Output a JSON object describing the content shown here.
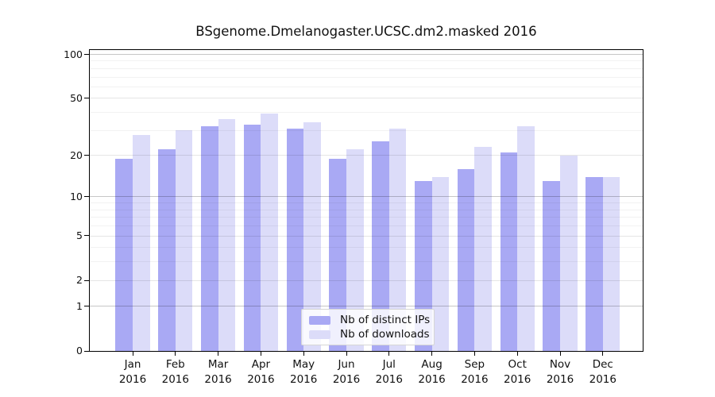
{
  "title": "BSgenome.Dmelanogaster.UCSC.dm2.masked 2016",
  "chart_data": {
    "type": "bar",
    "title": "BSgenome.Dmelanogaster.UCSC.dm2.masked 2016",
    "categories": [
      "Jan 2016",
      "Feb 2016",
      "Mar 2016",
      "Apr 2016",
      "May 2016",
      "Jun 2016",
      "Jul 2016",
      "Aug 2016",
      "Sep 2016",
      "Oct 2016",
      "Nov 2016",
      "Dec 2016"
    ],
    "series": [
      {
        "name": "Nb of distinct IPs",
        "color": "#a9a9f4",
        "values": [
          19,
          22,
          32,
          33,
          31,
          19,
          25,
          13,
          16,
          21,
          13,
          14
        ]
      },
      {
        "name": "Nb of downloads",
        "color": "#dcdcf9",
        "values": [
          28,
          30,
          36,
          39,
          34,
          22,
          31,
          14,
          23,
          32,
          20,
          14
        ]
      }
    ],
    "xlabel": "",
    "ylabel": "",
    "yscale": "log1p",
    "yticks": [
      0,
      1,
      2,
      5,
      10,
      20,
      50,
      100
    ],
    "ylim": [
      0,
      110
    ],
    "grid": true,
    "gridline_values": {
      "major": [
        1,
        10,
        100
      ],
      "secondary": [
        2,
        5,
        20,
        50
      ],
      "minor": [
        3,
        4,
        6,
        7,
        8,
        9,
        30,
        40,
        60,
        70,
        80,
        90
      ]
    },
    "legend_position": "bottom-center",
    "legend_labels": [
      "Nb of distinct IPs",
      "Nb of downloads"
    ]
  }
}
